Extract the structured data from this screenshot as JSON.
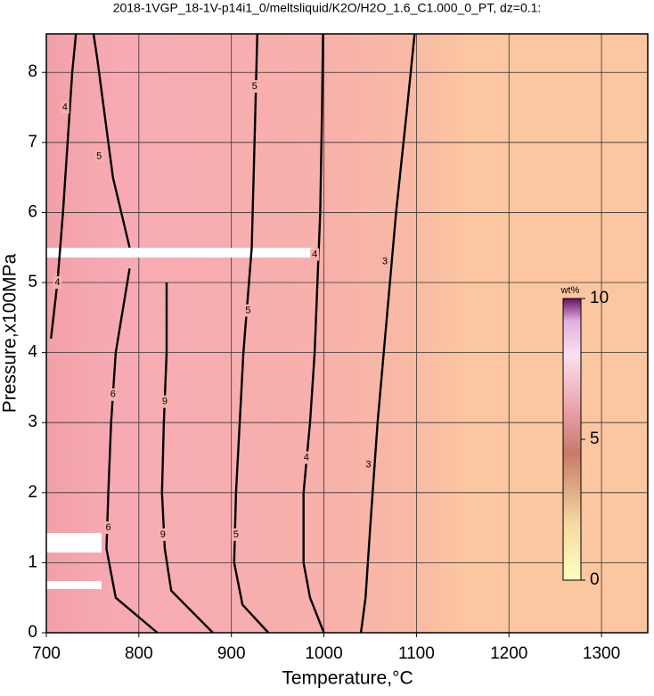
{
  "chart_data": {
    "type": "contour",
    "title": "2018-1VGP_18-1V-p14i1_0/meltsliquid/K2O/H2O_1.6_C1.000_0_PT, dz=0.1:",
    "x_label": "Temperature,°C",
    "y_label": "Pressure,x100MPa",
    "xlim": [
      700,
      1350
    ],
    "ylim": [
      0,
      8.55
    ],
    "xticks": [
      700,
      800,
      900,
      1000,
      1100,
      1200,
      1300
    ],
    "yticks": [
      0,
      1,
      2,
      3,
      4,
      5,
      6,
      7,
      8
    ],
    "grid": true,
    "contours": [
      {
        "level": 3,
        "x": [
          1040,
          1045,
          1050,
          1058,
          1068,
          1078,
          1090,
          1098
        ],
        "y": [
          0,
          0.5,
          1.5,
          3,
          4.5,
          6,
          7.5,
          8.55
        ],
        "label_x": [
          1048,
          1066
        ],
        "label_y": [
          2.4,
          5.3
        ]
      },
      {
        "level": 4,
        "x": [
          1000,
          985,
          978,
          978,
          985,
          990,
          993,
          996,
          998,
          999
        ],
        "y": [
          0,
          0.5,
          1,
          2,
          3,
          4,
          5,
          6,
          7.5,
          8.55
        ],
        "label_x": [
          981,
          990
        ],
        "label_y": [
          2.5,
          5.4
        ]
      },
      {
        "level": 5,
        "x": [
          940,
          912,
          903,
          905,
          913,
          922,
          925,
          928
        ],
        "y": [
          0,
          0.4,
          1,
          2,
          4,
          5.5,
          7,
          8.55
        ],
        "label_x": [
          905,
          918,
          925
        ],
        "label_y": [
          1.4,
          4.6,
          7.8
        ]
      },
      {
        "level": 9,
        "x": [
          880,
          835,
          828,
          825,
          827,
          830,
          830
        ],
        "y": [
          0,
          0.6,
          1.2,
          2,
          3,
          4,
          5
        ],
        "label_x": [
          826,
          828
        ],
        "label_y": [
          1.4,
          3.3
        ]
      },
      {
        "level": 6,
        "x": [
          820,
          775,
          765,
          767,
          770,
          775,
          790
        ],
        "y": [
          0,
          0.5,
          1.2,
          2,
          3,
          4,
          5.2
        ],
        "label_x": [
          767,
          772
        ],
        "label_y": [
          1.5,
          3.4
        ]
      },
      {
        "level": 5,
        "x": [
          790,
          772,
          762,
          755,
          751
        ],
        "y": [
          5.5,
          6.5,
          7.5,
          8.2,
          8.55
        ],
        "label_x": [
          757
        ],
        "label_y": [
          6.8
        ]
      },
      {
        "level": 4,
        "x": [
          705,
          712,
          718,
          723,
          728,
          732
        ],
        "y": [
          4.2,
          5,
          6,
          7,
          8,
          8.55
        ],
        "label_x": [
          712,
          720
        ],
        "label_y": [
          5.0,
          7.5
        ]
      }
    ],
    "colorbar": {
      "label": "wt%",
      "lim": [
        0,
        10
      ],
      "ticks": [
        0,
        5,
        10
      ]
    }
  }
}
